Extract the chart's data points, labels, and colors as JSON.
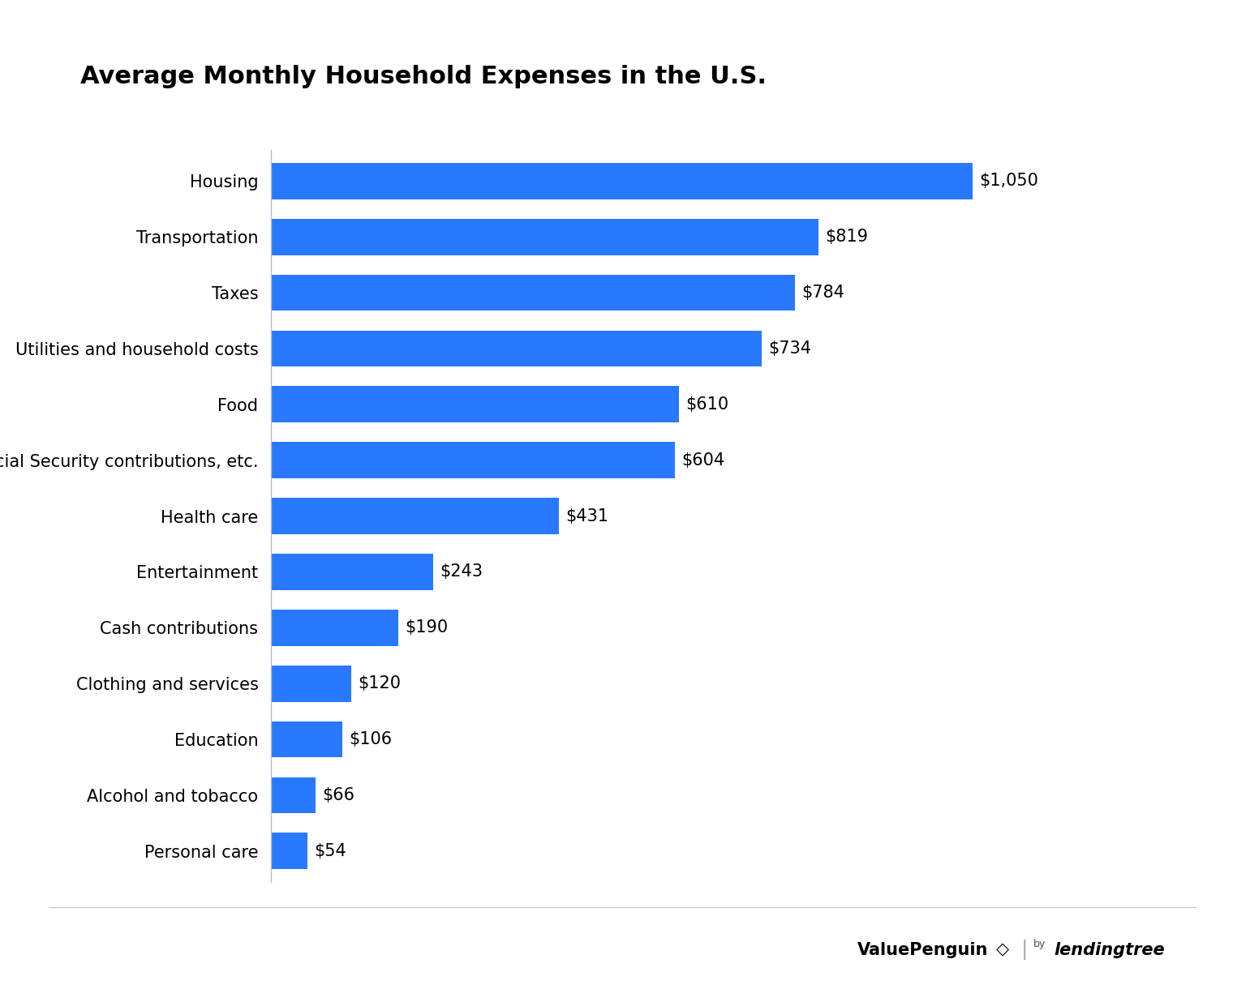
{
  "title": "Average Monthly Household Expenses in the U.S.",
  "categories": [
    "Personal care",
    "Alcohol and tobacco",
    "Education",
    "Clothing and services",
    "Cash contributions",
    "Entertainment",
    "Health care",
    "Social Security contributions, etc.",
    "Food",
    "Utilities and household costs",
    "Taxes",
    "Transportation",
    "Housing"
  ],
  "values": [
    54,
    66,
    106,
    120,
    190,
    243,
    431,
    604,
    610,
    734,
    784,
    819,
    1050
  ],
  "labels": [
    "$54",
    "$66",
    "$106",
    "$120",
    "$190",
    "$243",
    "$431",
    "$604",
    "$610",
    "$734",
    "$784",
    "$819",
    "$1,050"
  ],
  "bar_color": "#2979FF",
  "background_color": "#FFFFFF",
  "title_fontsize": 22,
  "label_fontsize": 15,
  "category_fontsize": 15,
  "bar_height": 0.65,
  "xlim": [
    0,
    1200
  ]
}
